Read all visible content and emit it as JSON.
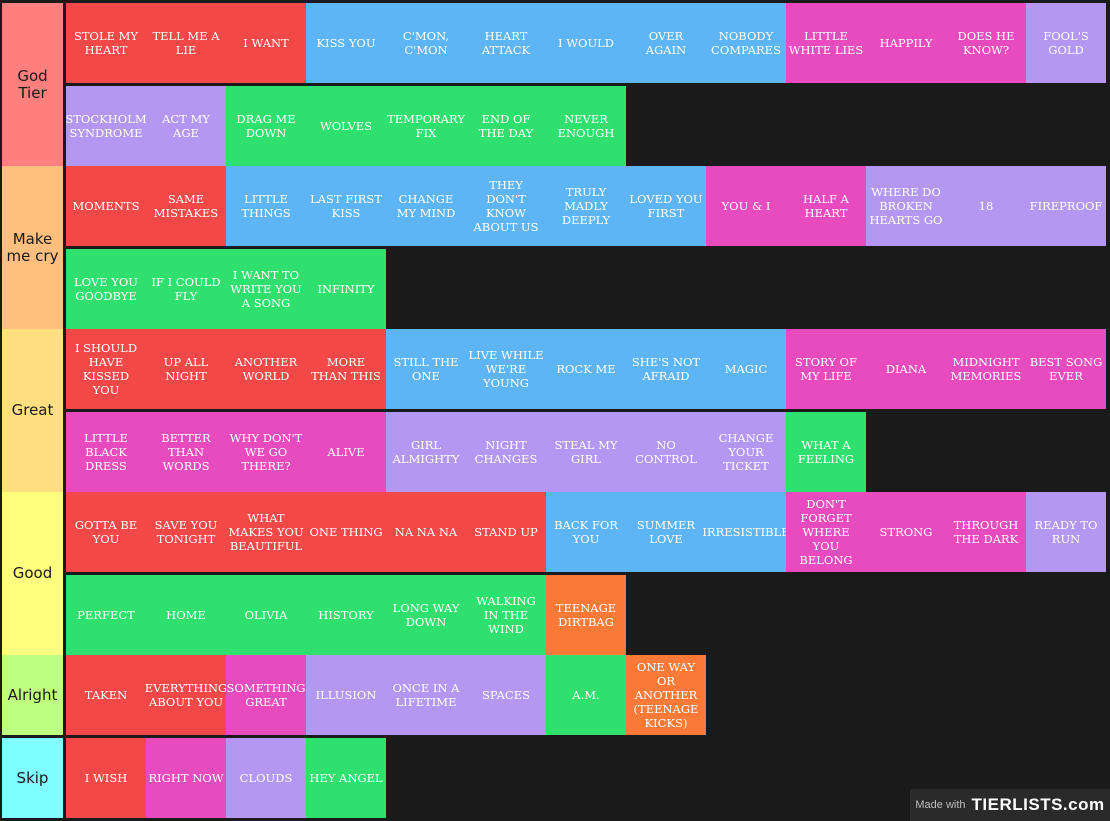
{
  "colors": {
    "red": "#f24848",
    "blue": "#5db5f5",
    "pink": "#e84bbd",
    "purple": "#b397f2",
    "green": "#2fe06e",
    "orange": "#fb7a37",
    "background": "#1a1a1a"
  },
  "tiers": [
    {
      "label": "God Tier",
      "color": "#ff7f7f",
      "items": [
        {
          "text": "STOLE MY HEART",
          "color": "red"
        },
        {
          "text": "TELL ME A LIE",
          "color": "red"
        },
        {
          "text": "I WANT",
          "color": "red"
        },
        {
          "text": "KISS YOU",
          "color": "blue"
        },
        {
          "text": "C'MON, C'MON",
          "color": "blue"
        },
        {
          "text": "HEART ATTACK",
          "color": "blue"
        },
        {
          "text": "I WOULD",
          "color": "blue"
        },
        {
          "text": "OVER AGAIN",
          "color": "blue"
        },
        {
          "text": "NOBODY COMPARES",
          "color": "blue"
        },
        {
          "text": "LITTLE WHITE LIES",
          "color": "pink"
        },
        {
          "text": "HAPPILY",
          "color": "pink"
        },
        {
          "text": "DOES HE KNOW?",
          "color": "pink"
        },
        {
          "text": "FOOL'S GOLD",
          "color": "purple"
        },
        {
          "text": "STOCKHOLM SYNDROME",
          "color": "purple"
        },
        {
          "text": "ACT MY AGE",
          "color": "purple"
        },
        {
          "text": "DRAG ME DOWN",
          "color": "green"
        },
        {
          "text": "WOLVES",
          "color": "green"
        },
        {
          "text": "TEMPORARY FIX",
          "color": "green"
        },
        {
          "text": "END OF THE DAY",
          "color": "green"
        },
        {
          "text": "NEVER ENOUGH",
          "color": "green"
        }
      ]
    },
    {
      "label": "Make me cry",
      "color": "#ffbf7f",
      "items": [
        {
          "text": "MOMENTS",
          "color": "red"
        },
        {
          "text": "SAME MISTAKES",
          "color": "red"
        },
        {
          "text": "LITTLE THINGS",
          "color": "blue"
        },
        {
          "text": "LAST FIRST KISS",
          "color": "blue"
        },
        {
          "text": "CHANGE MY MIND",
          "color": "blue"
        },
        {
          "text": "THEY DON'T KNOW ABOUT US",
          "color": "blue"
        },
        {
          "text": "TRULY MADLY DEEPLY",
          "color": "blue"
        },
        {
          "text": "LOVED YOU FIRST",
          "color": "blue"
        },
        {
          "text": "YOU & I",
          "color": "pink"
        },
        {
          "text": "HALF A HEART",
          "color": "pink"
        },
        {
          "text": "WHERE DO BROKEN HEARTS GO",
          "color": "purple"
        },
        {
          "text": "18",
          "color": "purple"
        },
        {
          "text": "FIREPROOF",
          "color": "purple"
        },
        {
          "text": "LOVE YOU GOODBYE",
          "color": "green"
        },
        {
          "text": "IF I COULD FLY",
          "color": "green"
        },
        {
          "text": "I WANT TO WRITE YOU A SONG",
          "color": "green"
        },
        {
          "text": "INFINITY",
          "color": "green"
        }
      ]
    },
    {
      "label": "Great",
      "color": "#ffdf7f",
      "items": [
        {
          "text": "I SHOULD HAVE KISSED YOU",
          "color": "red"
        },
        {
          "text": "UP ALL NIGHT",
          "color": "red"
        },
        {
          "text": "ANOTHER WORLD",
          "color": "red"
        },
        {
          "text": "MORE THAN THIS",
          "color": "red"
        },
        {
          "text": "STILL THE ONE",
          "color": "blue"
        },
        {
          "text": "LIVE WHILE WE'RE YOUNG",
          "color": "blue"
        },
        {
          "text": "ROCK ME",
          "color": "blue"
        },
        {
          "text": "SHE'S NOT AFRAID",
          "color": "blue"
        },
        {
          "text": "MAGIC",
          "color": "blue"
        },
        {
          "text": "STORY OF MY LIFE",
          "color": "pink"
        },
        {
          "text": "DIANA",
          "color": "pink"
        },
        {
          "text": "MIDNIGHT MEMORIES",
          "color": "pink"
        },
        {
          "text": "BEST SONG EVER",
          "color": "pink"
        },
        {
          "text": "LITTLE BLACK DRESS",
          "color": "pink"
        },
        {
          "text": "BETTER THAN WORDS",
          "color": "pink"
        },
        {
          "text": "WHY DON'T WE GO THERE?",
          "color": "pink"
        },
        {
          "text": "ALIVE",
          "color": "pink"
        },
        {
          "text": "GIRL ALMIGHTY",
          "color": "purple"
        },
        {
          "text": "NIGHT CHANGES",
          "color": "purple"
        },
        {
          "text": "STEAL MY GIRL",
          "color": "purple"
        },
        {
          "text": "NO CONTROL",
          "color": "purple"
        },
        {
          "text": "CHANGE YOUR TICKET",
          "color": "purple"
        },
        {
          "text": "WHAT A FEELING",
          "color": "green"
        }
      ]
    },
    {
      "label": "Good",
      "color": "#ffff7f",
      "items": [
        {
          "text": "GOTTA BE YOU",
          "color": "red"
        },
        {
          "text": "SAVE YOU TONIGHT",
          "color": "red"
        },
        {
          "text": "WHAT MAKES YOU BEAUTIFUL",
          "color": "red"
        },
        {
          "text": "ONE THING",
          "color": "red"
        },
        {
          "text": "NA NA NA",
          "color": "red"
        },
        {
          "text": "STAND UP",
          "color": "red"
        },
        {
          "text": "BACK FOR YOU",
          "color": "blue"
        },
        {
          "text": "SUMMER LOVE",
          "color": "blue"
        },
        {
          "text": "IRRESISTIBLE",
          "color": "blue"
        },
        {
          "text": "DON'T FORGET WHERE YOU BELONG",
          "color": "pink"
        },
        {
          "text": "STRONG",
          "color": "pink"
        },
        {
          "text": "THROUGH THE DARK",
          "color": "pink"
        },
        {
          "text": "READY TO RUN",
          "color": "purple"
        },
        {
          "text": "PERFECT",
          "color": "green"
        },
        {
          "text": "HOME",
          "color": "green"
        },
        {
          "text": "OLIVIA",
          "color": "green"
        },
        {
          "text": "HISTORY",
          "color": "green"
        },
        {
          "text": "LONG WAY DOWN",
          "color": "green"
        },
        {
          "text": "WALKING IN THE WIND",
          "color": "green"
        },
        {
          "text": "TEENAGE DIRTBAG",
          "color": "orange"
        }
      ]
    },
    {
      "label": "Alright",
      "color": "#bfff7f",
      "items": [
        {
          "text": "TAKEN",
          "color": "red"
        },
        {
          "text": "EVERYTHING ABOUT YOU",
          "color": "red"
        },
        {
          "text": "SOMETHING GREAT",
          "color": "pink"
        },
        {
          "text": "ILLUSION",
          "color": "purple"
        },
        {
          "text": "ONCE IN A LIFETIME",
          "color": "purple"
        },
        {
          "text": "SPACES",
          "color": "purple"
        },
        {
          "text": "A.M.",
          "color": "green"
        },
        {
          "text": "ONE WAY OR ANOTHER (TEENAGE KICKS)",
          "color": "orange"
        }
      ]
    },
    {
      "label": "Skip",
      "color": "#7fffff",
      "items": [
        {
          "text": "I WISH",
          "color": "red"
        },
        {
          "text": "RIGHT NOW",
          "color": "pink"
        },
        {
          "text": "CLOUDS",
          "color": "purple"
        },
        {
          "text": "HEY ANGEL",
          "color": "green"
        }
      ]
    }
  ],
  "watermark": {
    "made_with": "Made with",
    "logo": "TIERLISTS.com"
  }
}
